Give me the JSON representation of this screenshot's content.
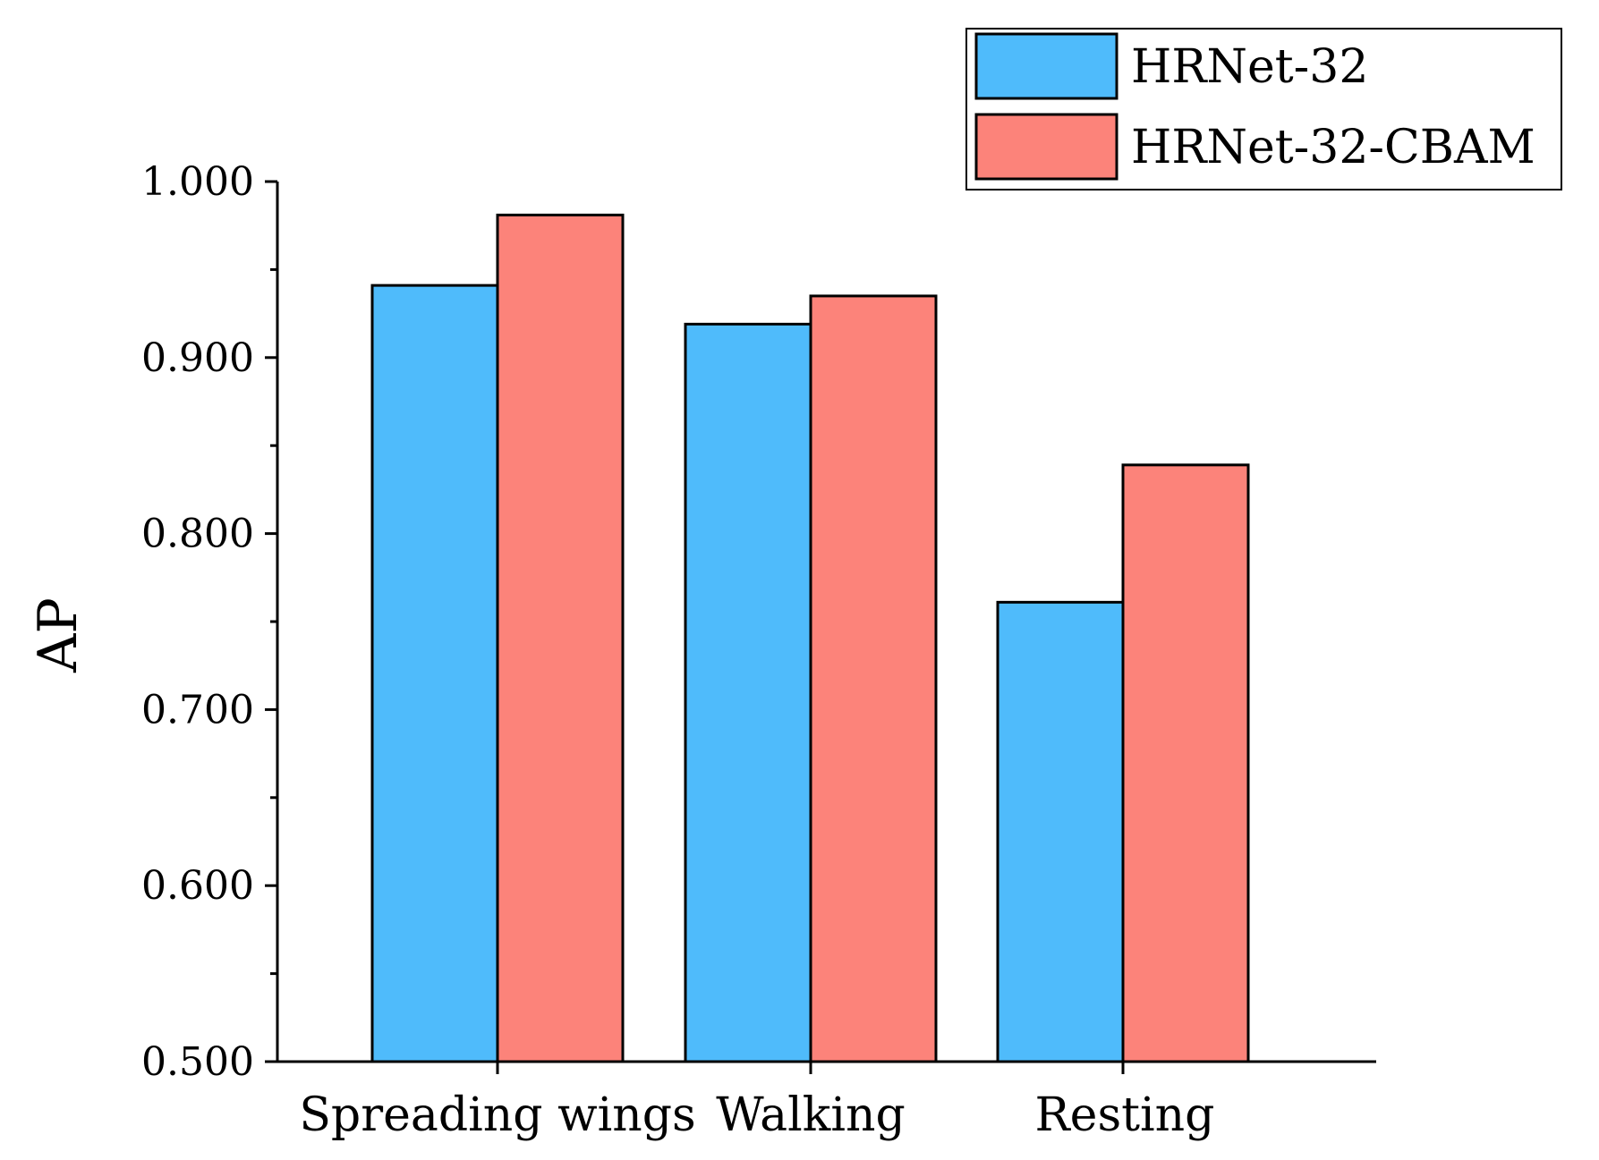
{
  "chart_data": {
    "type": "bar",
    "title": "",
    "xlabel": "",
    "ylabel": "AP",
    "ylim": [
      0.5,
      1.0
    ],
    "yticks": [
      "0.500",
      "0.600",
      "0.700",
      "0.800",
      "0.900",
      "1.000"
    ],
    "categories": [
      "Spreading wings",
      "Walking",
      "Resting"
    ],
    "series": [
      {
        "name": "HRNet-32",
        "color": "#4fbbfb",
        "values": [
          0.941,
          0.919,
          0.761
        ]
      },
      {
        "name": "HRNet-32-CBAM",
        "color": "#fc837a",
        "values": [
          0.981,
          0.935,
          0.839
        ]
      }
    ],
    "legend_position": "top-right",
    "grid": false
  }
}
